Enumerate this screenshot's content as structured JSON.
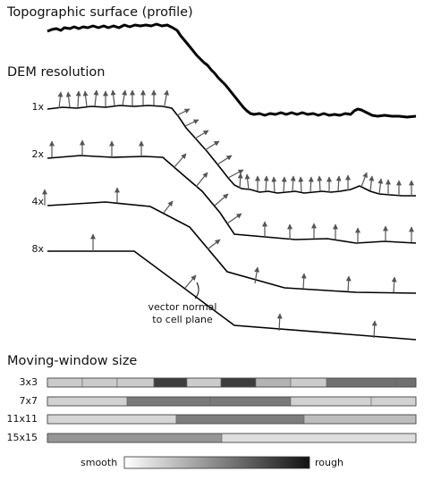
{
  "labels": {
    "surface_title": "Topographic surface (profile)",
    "dem_title": "DEM resolution",
    "window_title": "Moving-window size",
    "annotation_line1": "vector normal",
    "annotation_line2": "to cell plane",
    "scale_left": "smooth",
    "scale_right": "rough"
  },
  "resolutions": [
    "1x",
    "2x",
    "4x",
    "8x"
  ],
  "windows": [
    {
      "label": "3x3",
      "segment_shades": [
        "#cbcbcb",
        "#cbcbcb",
        "#cbcbcb",
        "#3d3d3d",
        "#cbcbcb",
        "#3d3d3d",
        "#b3b3b3",
        "#cbcbcb",
        "#707070",
        "#707070",
        "#e6e6e6"
      ]
    },
    {
      "label": "7x7",
      "segment_shades": [
        "#d2d2d2",
        "#7a7a7a",
        "#7a7a7a",
        "#d2d2d2",
        "#d2d2d2"
      ]
    },
    {
      "label": "11x11",
      "segment_shades": [
        "#d6d6d6",
        "#7d7d7d",
        "#bdbdbd"
      ]
    },
    {
      "label": "15x15",
      "segment_shades": [
        "#969696",
        "#dedede"
      ]
    }
  ],
  "colors": {
    "line": "#000000",
    "vector": "#555555",
    "scale_smooth": "#ffffff",
    "scale_rough": "#111111"
  }
}
